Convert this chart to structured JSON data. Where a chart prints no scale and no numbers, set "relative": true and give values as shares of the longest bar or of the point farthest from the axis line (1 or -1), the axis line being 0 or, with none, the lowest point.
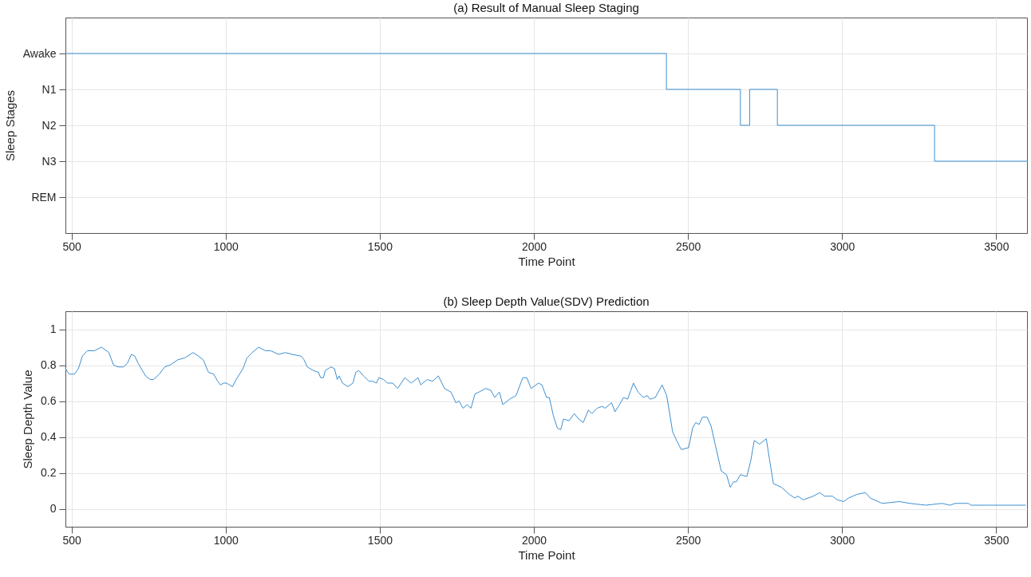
{
  "chart_data": [
    {
      "type": "step",
      "title": "(a) Result of Manual Sleep Staging",
      "xlabel": "Time Point",
      "ylabel": "Sleep Stages",
      "x": [
        480,
        2430,
        2670,
        2700,
        2790,
        3300,
        3600
      ],
      "series": [
        {
          "color": "#3d8fd1",
          "values": [
            1,
            0.8,
            0.6,
            0.8,
            0.6,
            0.4,
            0.4
          ]
        }
      ],
      "relative": true,
      "xlim": [
        480,
        3600
      ],
      "xticks": [
        500,
        1000,
        1500,
        2000,
        2500,
        3000,
        3500
      ],
      "y_categories": [
        "Awake",
        "N1",
        "N2",
        "N3",
        "REM"
      ],
      "grid": true
    },
    {
      "type": "line",
      "title": "(b) Sleep Depth Value(SDV) Prediction",
      "xlabel": "Time Point",
      "ylabel": "Sleep Depth Value",
      "x": [
        480,
        492,
        509,
        522,
        535,
        551,
        574,
        597,
        621,
        636,
        651,
        668,
        681,
        694,
        705,
        716,
        740,
        755,
        766,
        785,
        802,
        819,
        845,
        867,
        894,
        912,
        927,
        944,
        961,
        974,
        983,
        993,
        1002,
        1012,
        1022,
        1034,
        1056,
        1069,
        1086,
        1107,
        1129,
        1146,
        1172,
        1194,
        1215,
        1245,
        1254,
        1265,
        1284,
        1301,
        1308,
        1317,
        1323,
        1342,
        1353,
        1362,
        1368,
        1379,
        1396,
        1413,
        1422,
        1432,
        1447,
        1465,
        1478,
        1489,
        1497,
        1512,
        1525,
        1542,
        1558,
        1581,
        1602,
        1624,
        1633,
        1654,
        1671,
        1690,
        1710,
        1731,
        1747,
        1757,
        1770,
        1783,
        1796,
        1809,
        1822,
        1843,
        1860,
        1873,
        1888,
        1899,
        1921,
        1942,
        1964,
        1977,
        1991,
        2015,
        2026,
        2041,
        2050,
        2063,
        2076,
        2087,
        2096,
        2114,
        2131,
        2145,
        2160,
        2177,
        2188,
        2205,
        2222,
        2231,
        2252,
        2263,
        2278,
        2291,
        2304,
        2323,
        2338,
        2355,
        2368,
        2377,
        2394,
        2416,
        2431,
        2450,
        2463,
        2478,
        2502,
        2515,
        2525,
        2536,
        2547,
        2562,
        2575,
        2588,
        2608,
        2625,
        2637,
        2648,
        2657,
        2670,
        2691,
        2704,
        2715,
        2732,
        2754,
        2764,
        2777,
        2803,
        2829,
        2846,
        2857,
        2874,
        2906,
        2928,
        2943,
        2969,
        2984,
        3005,
        3021,
        3048,
        3076,
        3091,
        3130,
        3186,
        3220,
        3272,
        3324,
        3350,
        3367,
        3410,
        3418,
        3479,
        3539,
        3596
      ],
      "series": [
        {
          "color": "#3d8fd1",
          "values": [
            0.78,
            0.75,
            0.75,
            0.78,
            0.85,
            0.88,
            0.88,
            0.9,
            0.87,
            0.8,
            0.79,
            0.79,
            0.81,
            0.86,
            0.85,
            0.81,
            0.74,
            0.72,
            0.72,
            0.75,
            0.79,
            0.8,
            0.83,
            0.84,
            0.87,
            0.85,
            0.83,
            0.76,
            0.75,
            0.71,
            0.69,
            0.7,
            0.7,
            0.69,
            0.68,
            0.72,
            0.78,
            0.84,
            0.87,
            0.9,
            0.88,
            0.88,
            0.86,
            0.87,
            0.86,
            0.85,
            0.83,
            0.79,
            0.77,
            0.76,
            0.73,
            0.73,
            0.77,
            0.79,
            0.78,
            0.72,
            0.74,
            0.7,
            0.68,
            0.7,
            0.76,
            0.77,
            0.74,
            0.71,
            0.71,
            0.7,
            0.73,
            0.72,
            0.7,
            0.7,
            0.67,
            0.73,
            0.7,
            0.73,
            0.69,
            0.72,
            0.71,
            0.74,
            0.67,
            0.65,
            0.59,
            0.6,
            0.56,
            0.58,
            0.56,
            0.64,
            0.65,
            0.67,
            0.66,
            0.62,
            0.65,
            0.58,
            0.61,
            0.63,
            0.73,
            0.73,
            0.67,
            0.7,
            0.69,
            0.62,
            0.62,
            0.52,
            0.45,
            0.44,
            0.5,
            0.49,
            0.53,
            0.5,
            0.48,
            0.55,
            0.53,
            0.56,
            0.57,
            0.56,
            0.59,
            0.54,
            0.58,
            0.62,
            0.61,
            0.7,
            0.65,
            0.62,
            0.63,
            0.61,
            0.62,
            0.69,
            0.63,
            0.43,
            0.38,
            0.33,
            0.34,
            0.45,
            0.48,
            0.47,
            0.51,
            0.51,
            0.46,
            0.36,
            0.21,
            0.19,
            0.12,
            0.15,
            0.15,
            0.19,
            0.18,
            0.27,
            0.38,
            0.36,
            0.39,
            0.28,
            0.14,
            0.12,
            0.08,
            0.06,
            0.07,
            0.05,
            0.07,
            0.09,
            0.07,
            0.07,
            0.05,
            0.04,
            0.06,
            0.08,
            0.09,
            0.06,
            0.03,
            0.04,
            0.03,
            0.02,
            0.03,
            0.02,
            0.03,
            0.03,
            0.02,
            0.02,
            0.02,
            0.02
          ]
        }
      ],
      "xlim": [
        480,
        3600
      ],
      "xticks": [
        500,
        1000,
        1500,
        2000,
        2500,
        3000,
        3500
      ],
      "ylim": [
        -0.1,
        1.1
      ],
      "yticks": [
        0,
        0.2,
        0.4,
        0.6,
        0.8,
        1
      ],
      "grid": true
    }
  ]
}
